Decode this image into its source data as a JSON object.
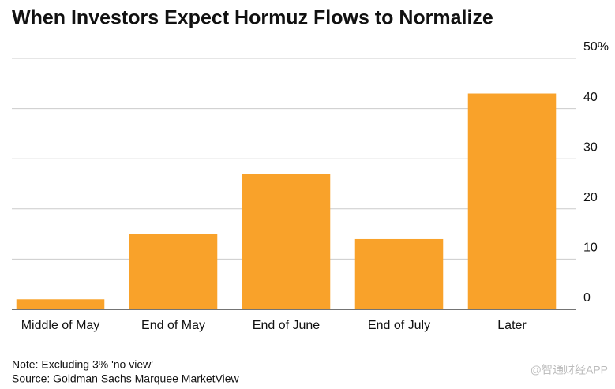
{
  "chart_data": {
    "type": "bar",
    "title": "When Investors Expect Hormuz Flows to Normalize",
    "categories": [
      "Middle of May",
      "End of May",
      "End of June",
      "End of July",
      "Later"
    ],
    "values": [
      2,
      15,
      27,
      14,
      43
    ],
    "color": "#f9a22a",
    "ylim": [
      0,
      50
    ],
    "yticks": [
      0,
      10,
      20,
      30,
      40,
      {
        "value": 50,
        "label": "50%"
      }
    ],
    "grid": true,
    "note": "Note: Excluding 3% 'no view'",
    "source": "Source: Goldman Sachs Marquee MarketView",
    "watermark": "@智通财经APP"
  }
}
